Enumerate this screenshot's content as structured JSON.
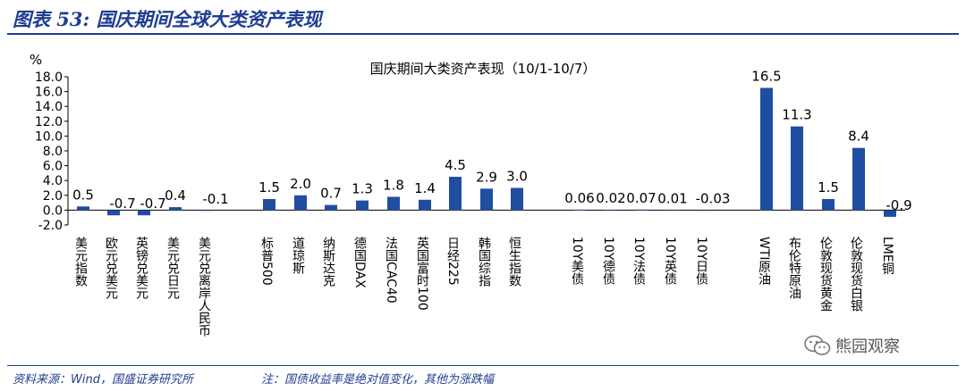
{
  "header": {
    "title": "图表 53: 国庆期间全球大类资产表现"
  },
  "chart_data": {
    "type": "bar",
    "title": "国庆期间大类资产表现（10/1-10/7）",
    "ylabel": "%",
    "ylim": [
      -2.0,
      18.0
    ],
    "yticks": [
      "18.0",
      "16.0",
      "14.0",
      "12.0",
      "10.0",
      "8.0",
      "6.0",
      "4.0",
      "2.0",
      "0.0",
      "-2.0"
    ],
    "series_color": "#1f4ea0",
    "gridlines": false,
    "categories": [
      "美元指数",
      "欧元兑美元",
      "英镑兑美元",
      "美元兑日元",
      "美元兑离岸人民币",
      "标普500",
      "道琼斯",
      "纳斯达克",
      "德国DAX",
      "法国CAC40",
      "英国富时100",
      "日经225",
      "韩国综指",
      "恒生指数",
      "10Y美债",
      "10Y德债",
      "10Y法债",
      "10Y英债",
      "10Y日债",
      "WTI原油",
      "布伦特原油",
      "伦敦现货黄金",
      "伦敦现货白银",
      "LME铜"
    ],
    "values": [
      0.5,
      -0.7,
      -0.7,
      0.4,
      -0.1,
      1.5,
      2.0,
      0.7,
      1.3,
      1.8,
      1.4,
      4.5,
      2.9,
      3.0,
      0.06,
      0.02,
      0.07,
      0.01,
      -0.03,
      16.5,
      11.3,
      1.5,
      8.4,
      -0.9
    ],
    "value_labels": [
      "0.5",
      "-0.7",
      "-0.7",
      "0.4",
      "-0.1",
      "1.5",
      "2.0",
      "0.7",
      "1.3",
      "1.8",
      "1.4",
      "4.5",
      "2.9",
      "3.0",
      "0.06",
      "0.02",
      "0.07",
      "0.01",
      "-0.03",
      "16.5",
      "11.3",
      "1.5",
      "8.4",
      "-0.9"
    ]
  },
  "footer": {
    "source": "资料来源：Wind，国盛证券研究所",
    "note": "注：国债收益率是绝对值变化，其他为涨跌幅"
  },
  "watermark": {
    "text": "熊园观察",
    "icon": "wechat-icon"
  }
}
